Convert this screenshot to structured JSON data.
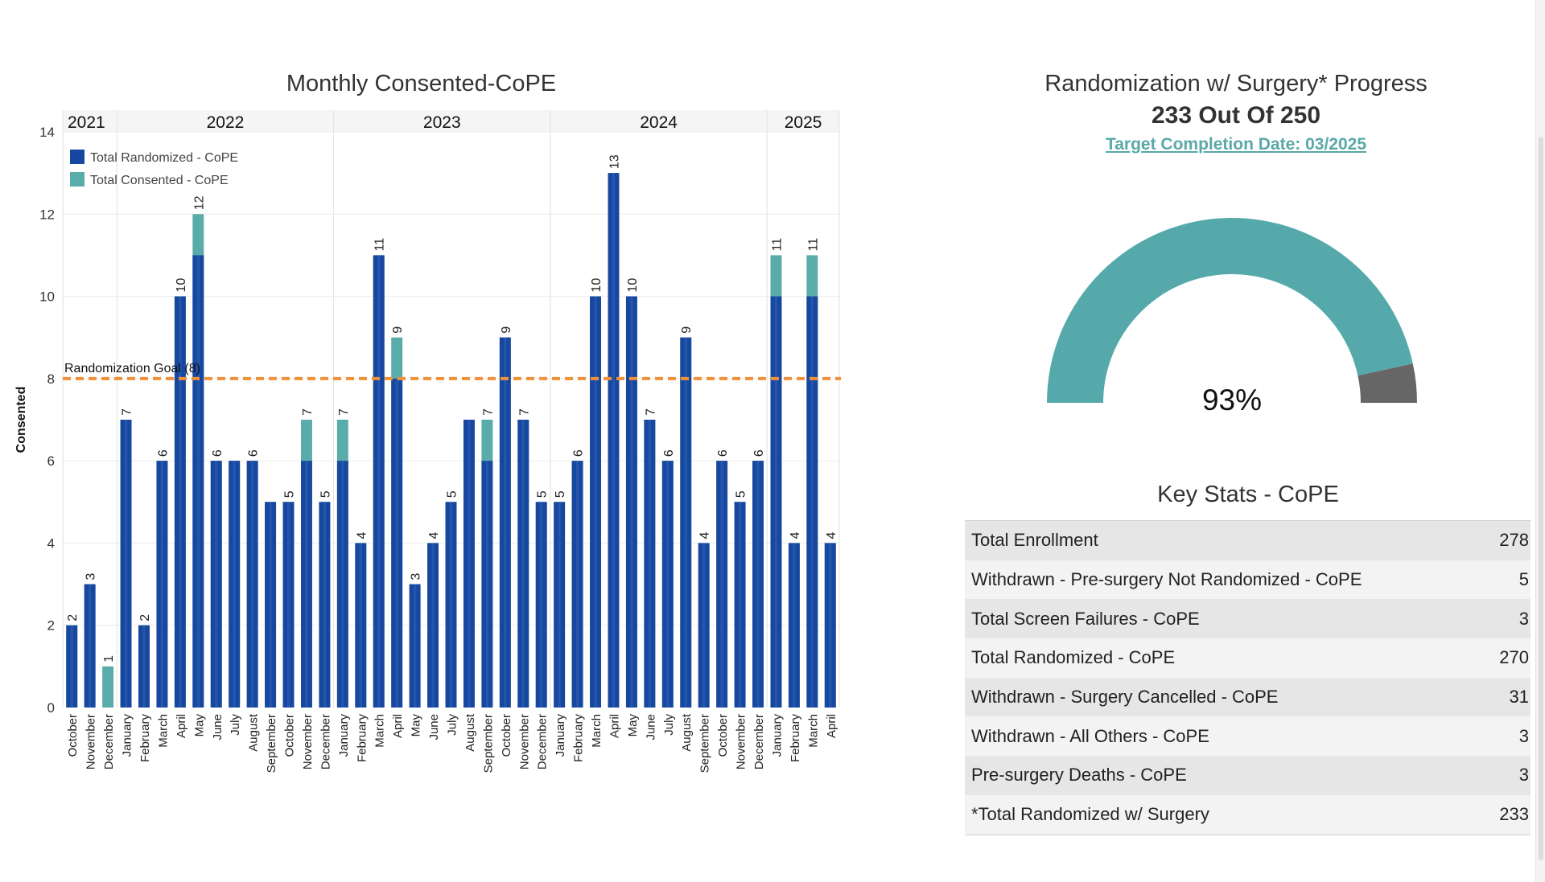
{
  "colors": {
    "randomized": "#17479e",
    "consented": "#5aacaa",
    "goal_line": "#f0913a",
    "gauge_fill": "#56a9ab",
    "gauge_remainder": "#666666"
  },
  "chart_data": {
    "type": "bar",
    "title": "Monthly Consented-CoPE",
    "ylabel": "Consented",
    "ylim": [
      0,
      14
    ],
    "yticks": [
      0,
      2,
      4,
      6,
      8,
      10,
      12,
      14
    ],
    "legend": [
      "Total Randomized - CoPE",
      "Total Consented - CoPE"
    ],
    "legend_position": "top-left",
    "grid": true,
    "goal": {
      "value": 8,
      "label": "Randomization Goal (8)"
    },
    "years": [
      {
        "label": "2021",
        "count": 3
      },
      {
        "label": "2022",
        "count": 12
      },
      {
        "label": "2023",
        "count": 12
      },
      {
        "label": "2024",
        "count": 12
      },
      {
        "label": "2025",
        "count": 4
      }
    ],
    "categories": [
      "October",
      "November",
      "December",
      "January",
      "February",
      "March",
      "April",
      "May",
      "June",
      "July",
      "August",
      "September",
      "October",
      "November",
      "December",
      "January",
      "February",
      "March",
      "April",
      "May",
      "June",
      "July",
      "August",
      "September",
      "October",
      "November",
      "December",
      "January",
      "February",
      "March",
      "April",
      "May",
      "June",
      "July",
      "August",
      "September",
      "October",
      "November",
      "December",
      "January",
      "February",
      "March",
      "April"
    ],
    "series": [
      {
        "name": "Total Consented - CoPE",
        "values": [
          2,
          3,
          1,
          7,
          2,
          6,
          10,
          12,
          6,
          6,
          6,
          5,
          5,
          7,
          5,
          7,
          4,
          11,
          9,
          3,
          4,
          5,
          7,
          7,
          9,
          7,
          5,
          5,
          6,
          10,
          13,
          10,
          7,
          6,
          9,
          4,
          6,
          5,
          6,
          11,
          4,
          11,
          4
        ]
      },
      {
        "name": "Total Randomized - CoPE",
        "values": [
          2,
          3,
          0,
          7,
          2,
          6,
          10,
          11,
          6,
          6,
          6,
          5,
          5,
          6,
          5,
          6,
          4,
          11,
          8,
          3,
          4,
          5,
          7,
          6,
          9,
          7,
          5,
          5,
          6,
          10,
          13,
          10,
          7,
          6,
          9,
          4,
          6,
          5,
          6,
          10,
          4,
          10,
          4
        ]
      }
    ],
    "data_labels": [
      2,
      3,
      1,
      7,
      2,
      6,
      10,
      12,
      6,
      null,
      6,
      null,
      5,
      7,
      5,
      7,
      4,
      11,
      9,
      3,
      4,
      5,
      null,
      7,
      9,
      7,
      5,
      5,
      6,
      10,
      13,
      10,
      7,
      6,
      9,
      4,
      6,
      5,
      6,
      11,
      4,
      11,
      4
    ]
  },
  "gauge": {
    "title": "Randomization w/ Surgery* Progress",
    "subtitle": "233 Out Of 250",
    "link": "Target Completion Date: 03/2025",
    "percent_label": "93%",
    "value": 233,
    "total": 250
  },
  "stats": {
    "title": "Key Stats - CoPE",
    "rows": [
      {
        "label": "Total Enrollment",
        "value": "278"
      },
      {
        "label": "Withdrawn - Pre-surgery Not Randomized - CoPE",
        "value": "5"
      },
      {
        "label": "Total Screen Failures - CoPE",
        "value": "3"
      },
      {
        "label": "Total Randomized - CoPE",
        "value": "270"
      },
      {
        "label": "Withdrawn - Surgery Cancelled - CoPE",
        "value": "31"
      },
      {
        "label": "Withdrawn - All Others - CoPE",
        "value": "3"
      },
      {
        "label": "Pre-surgery Deaths - CoPE",
        "value": "3"
      },
      {
        "label": "*Total Randomized w/ Surgery",
        "value": "233"
      }
    ]
  }
}
